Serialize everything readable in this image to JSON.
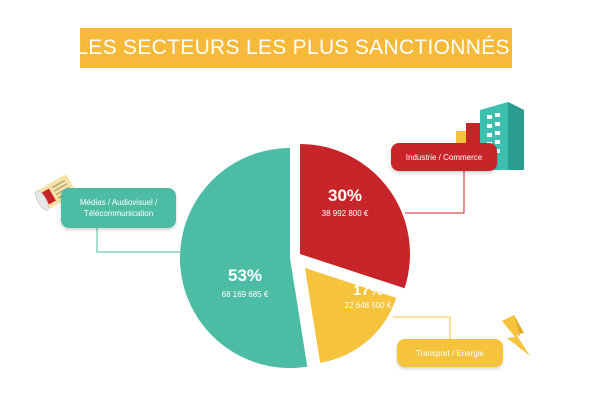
{
  "title": {
    "text": "LES SECTEURS LES PLUS SANCTIONNÉS",
    "asterisk": "*"
  },
  "colors": {
    "banner": "#f7b93a",
    "medias": "#4dbca5",
    "industrie": "#c8252a",
    "transport": "#f6c33d",
    "connector_medias": "#4dbca5",
    "connector_industrie": "#c8252a",
    "connector_transport": "#f6c33d"
  },
  "icons": {
    "medias": "newspaper-icon",
    "industrie": "building-icon",
    "transport": "lightning-icon"
  },
  "chart_data": {
    "type": "pie",
    "title": "LES SECTEURS LES PLUS SANCTIONNÉS*",
    "slices": [
      {
        "key": "industrie",
        "label": "Industrie / Commerce",
        "percent_label": "30%",
        "amount_label": "38 992 800 €",
        "value": 38992800
      },
      {
        "key": "transport",
        "label": "Transport / Energie",
        "percent_label": "17%",
        "amount_label": "22 648 500 €",
        "value": 22648500
      },
      {
        "key": "medias",
        "label": "Médias / Audiovisuel / Télécommunication",
        "percent_label": "53%",
        "amount_label": "68 169 685 €",
        "value": 68169685
      }
    ]
  },
  "labels": {
    "industrie": "Industrie / Commerce",
    "medias_line1": "Médias / Audiovisuel /",
    "medias_line2": "Télécommunication",
    "transport": "Transport / Energie"
  }
}
